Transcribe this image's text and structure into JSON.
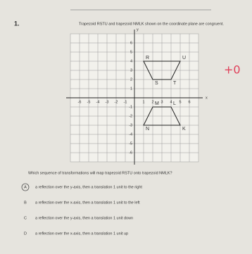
{
  "number": "1.",
  "intro": "Trapezoid RSTU and trapezoid NMLK shown on the coordinate plane are congruent.",
  "score": "+0",
  "graph": {
    "x_label": "x",
    "y_label": "y",
    "xlim": [
      -7,
      7
    ],
    "ylim": [
      -7,
      7
    ],
    "xticks": [
      -6,
      -5,
      -4,
      -3,
      -2,
      -1,
      1,
      2,
      3,
      4,
      5,
      6
    ],
    "yticks": [
      -6,
      -5,
      -4,
      -3,
      -2,
      -1,
      1,
      2,
      3,
      4,
      5,
      6
    ],
    "shapes": [
      {
        "vertices": [
          {
            "label": "R",
            "x": 1,
            "y": 4
          },
          {
            "label": "S",
            "x": 2,
            "y": 2
          },
          {
            "label": "T",
            "x": 4,
            "y": 2
          },
          {
            "label": "U",
            "x": 5,
            "y": 4
          }
        ]
      },
      {
        "vertices": [
          {
            "label": "N",
            "x": 1,
            "y": -3
          },
          {
            "label": "M",
            "x": 2,
            "y": -1
          },
          {
            "label": "L",
            "x": 4,
            "y": -1
          },
          {
            "label": "K",
            "x": 5,
            "y": -3
          }
        ]
      }
    ]
  },
  "question": "Which sequence of transformations will map trapezoid RSTU onto trapezoid NMLK?",
  "options": [
    {
      "letter": "A",
      "text": "a reflection over the y-axis, then a translation 1 unit to the right"
    },
    {
      "letter": "B",
      "text": "a reflection over the x-axis, then a translation 1 unit to the left"
    },
    {
      "letter": "C",
      "text": "a reflection over the y-axis, then a translation 1 unit down"
    },
    {
      "letter": "D",
      "text": "a reflection over the x-axis, then a translation 1 unit up"
    }
  ]
}
